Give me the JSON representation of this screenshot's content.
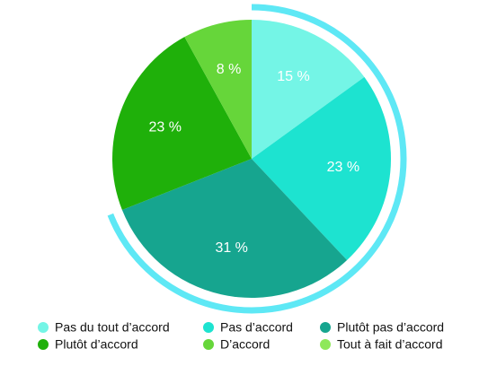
{
  "chart_data": {
    "type": "pie",
    "categories": [
      "Pas du tout d’accord",
      "Pas d’accord",
      "Plutôt pas d’accord",
      "Plutôt d’accord",
      "D’accord",
      "Tout à fait d’accord"
    ],
    "values": [
      15,
      23,
      31,
      23,
      8,
      0
    ],
    "value_labels": [
      "15 %",
      "23 %",
      "31 %",
      "23 %",
      "8 %",
      null
    ],
    "colors": [
      "#74f5e6",
      "#1de3d0",
      "#16a58f",
      "#1fb00a",
      "#66d63a",
      "#8ee85a"
    ]
  }
}
